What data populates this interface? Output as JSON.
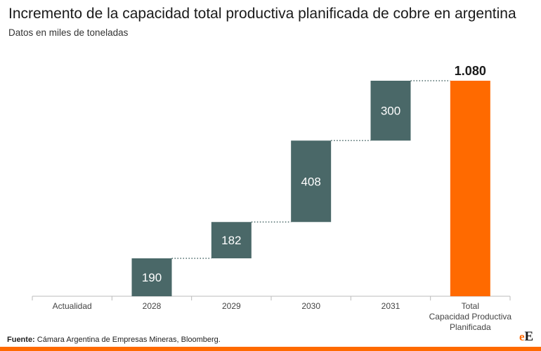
{
  "title": "Incremento de la capacidad total productiva planificada de cobre en argentina",
  "subtitle": "Datos en miles de toneladas",
  "footer": {
    "source_label": "Fuente:",
    "source_text": " Cámara Argentina de Empresas Mineras, Bloomberg."
  },
  "logo": {
    "small": "e",
    "big": "E"
  },
  "colors": {
    "increment": "#4a6868",
    "total": "#ff6a00",
    "connector": "#4a6868",
    "axis": "#bbbbbb"
  },
  "chart_data": {
    "type": "bar",
    "subtype": "waterfall",
    "categories": [
      "Actualidad",
      "2028",
      "2029",
      "2030",
      "2031",
      [
        "Total",
        "Capacidad Productiva",
        "Planificada"
      ]
    ],
    "values": [
      0,
      190,
      182,
      408,
      300,
      1080
    ],
    "labels": [
      "",
      "190",
      "182",
      "408",
      "300",
      "1.080"
    ],
    "kinds": [
      "increment",
      "increment",
      "increment",
      "increment",
      "increment",
      "total"
    ],
    "ylim": [
      0,
      1080
    ],
    "grid": false,
    "legend": "none"
  }
}
